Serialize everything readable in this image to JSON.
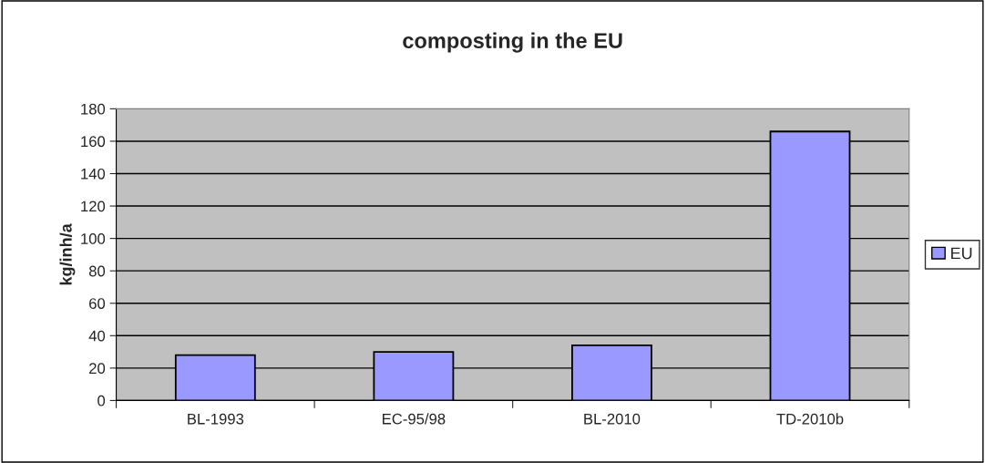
{
  "chart_data": {
    "type": "bar",
    "title": "composting in the EU",
    "ylabel": "kg/inh/a",
    "categories": [
      "BL-1993",
      "EC-95/98",
      "BL-2010",
      "TD-2010b"
    ],
    "series": [
      {
        "name": "EU",
        "color": "#9999ff",
        "values": [
          28,
          30,
          34,
          166
        ]
      }
    ],
    "ylim": [
      0,
      180
    ],
    "yticks": [
      0,
      20,
      40,
      60,
      80,
      100,
      120,
      140,
      160,
      180
    ],
    "grid": "y",
    "legend": "right"
  }
}
